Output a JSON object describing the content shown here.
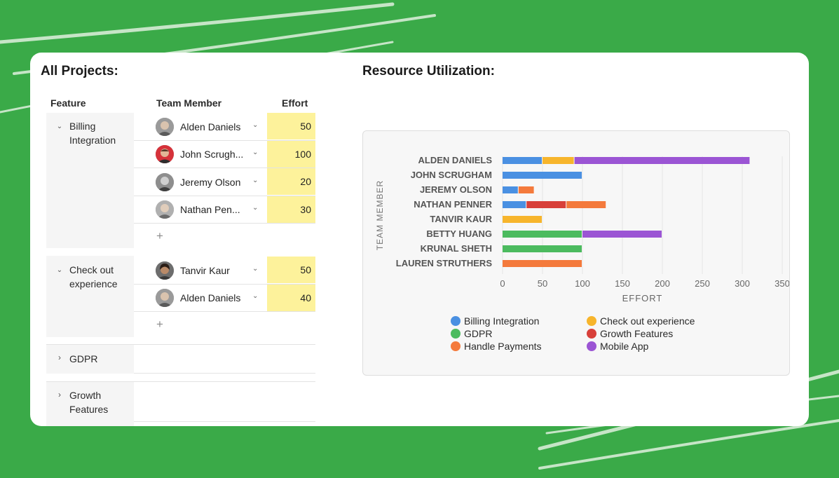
{
  "colors": {
    "background": "#3aaa48",
    "effort_highlight": "#fdf29b",
    "billing": "#4a90e2",
    "checkout": "#f7b52c",
    "gdpr": "#4cbb5f",
    "growth": "#d8403a",
    "payments": "#f47a3c",
    "mobile": "#9b55d4"
  },
  "projects": {
    "title": "All Projects:",
    "columns": {
      "feature": "Feature",
      "member": "Team Member",
      "effort": "Effort"
    },
    "groups": [
      {
        "feature": "Billing Integration",
        "expanded": true,
        "rows": [
          {
            "member": "Alden Daniels",
            "effort": "50",
            "avatar_icon": "avatar-alden"
          },
          {
            "member": "John Scrugh...",
            "effort": "100",
            "avatar_icon": "avatar-john"
          },
          {
            "member": "Jeremy Olson",
            "effort": "20",
            "avatar_icon": "avatar-jeremy"
          },
          {
            "member": "Nathan Pen...",
            "effort": "30",
            "avatar_icon": "avatar-nathan"
          }
        ],
        "add_label": "+"
      },
      {
        "feature": "Check out experience",
        "expanded": true,
        "rows": [
          {
            "member": "Tanvir Kaur",
            "effort": "50",
            "avatar_icon": "avatar-tanvir"
          },
          {
            "member": "Alden Daniels",
            "effort": "40",
            "avatar_icon": "avatar-alden"
          }
        ],
        "add_label": "+"
      },
      {
        "feature": "GDPR",
        "expanded": false
      },
      {
        "feature": "Growth Features",
        "expanded": false
      }
    ]
  },
  "chart_title": "Resource Utilization:",
  "chart_data": {
    "type": "bar",
    "orientation": "horizontal",
    "stacked": true,
    "categories": [
      "ALDEN DANIELS",
      "JOHN SCRUGHAM",
      "JEREMY OLSON",
      "NATHAN PENNER",
      "TANVIR KAUR",
      "BETTY HUANG",
      "KRUNAL SHETH",
      "LAUREN STRUTHERS"
    ],
    "series": [
      {
        "name": "Billing Integration",
        "color": "#4a90e2",
        "values": [
          50,
          100,
          20,
          30,
          0,
          0,
          0,
          0
        ]
      },
      {
        "name": "Check out experience",
        "color": "#f7b52c",
        "values": [
          40,
          0,
          0,
          0,
          50,
          0,
          0,
          0
        ]
      },
      {
        "name": "GDPR",
        "color": "#4cbb5f",
        "values": [
          0,
          0,
          0,
          0,
          0,
          100,
          100,
          0
        ]
      },
      {
        "name": "Growth Features",
        "color": "#d8403a",
        "values": [
          0,
          0,
          0,
          50,
          0,
          0,
          0,
          0
        ]
      },
      {
        "name": "Handle Payments",
        "color": "#f47a3c",
        "values": [
          0,
          0,
          20,
          50,
          0,
          0,
          0,
          100
        ]
      },
      {
        "name": "Mobile App",
        "color": "#9b55d4",
        "values": [
          220,
          0,
          0,
          0,
          0,
          100,
          0,
          0
        ]
      }
    ],
    "xlabel": "EFFORT",
    "ylabel": "TEAM MEMBER",
    "xlim": [
      0,
      350
    ],
    "xticks": [
      "0",
      "50",
      "100",
      "150",
      "200",
      "250",
      "300",
      "350"
    ],
    "grid": true,
    "legend_position": "bottom"
  }
}
